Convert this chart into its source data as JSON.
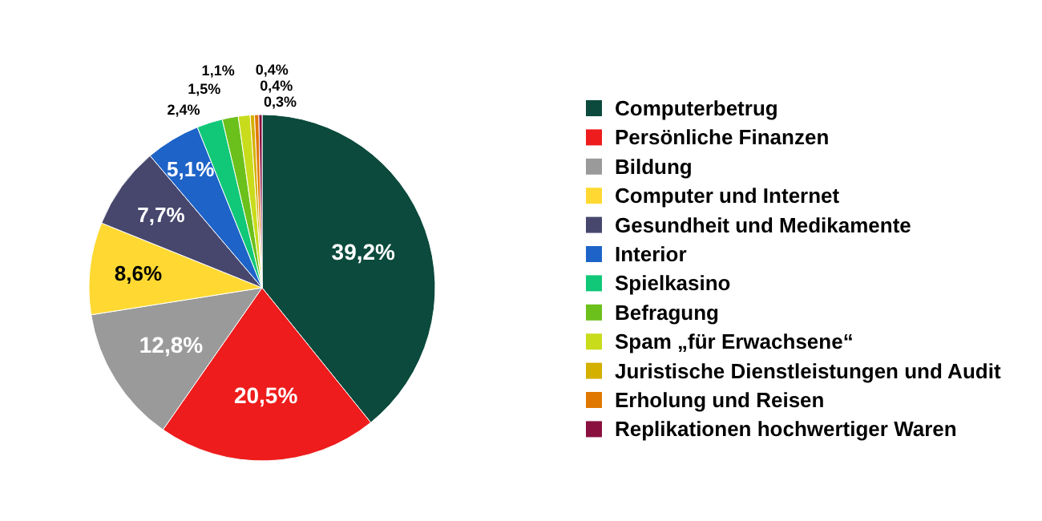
{
  "chart_data": {
    "type": "pie",
    "categories": [
      "Computerbetrug",
      "Persönliche Finanzen",
      "Bildung",
      "Computer und Internet",
      "Gesundheit und Medikamente",
      "Interior",
      "Spielkasino",
      "Befragung",
      "Spam „für Erwachsene“",
      "Juristische Dienstleistungen und Audit",
      "Erholung und Reisen",
      "Replikationen hochwertiger Waren"
    ],
    "values": [
      39.2,
      20.5,
      12.8,
      8.6,
      7.7,
      5.1,
      2.4,
      1.5,
      1.1,
      0.4,
      0.4,
      0.3
    ],
    "value_labels": [
      "39,2%",
      "20,5%",
      "12,8%",
      "8,6%",
      "7,7%",
      "5,1%",
      "2,4%",
      "1,5%",
      "1,1%",
      "0,4%",
      "0,4%",
      "0,3%"
    ],
    "colors": [
      "#0b4a3c",
      "#ee1c1c",
      "#9a9a9a",
      "#ffd932",
      "#47476e",
      "#1e64c8",
      "#10c878",
      "#6cc01c",
      "#c8dc1c",
      "#d4b000",
      "#e07800",
      "#8a1040"
    ],
    "legend": "right"
  }
}
